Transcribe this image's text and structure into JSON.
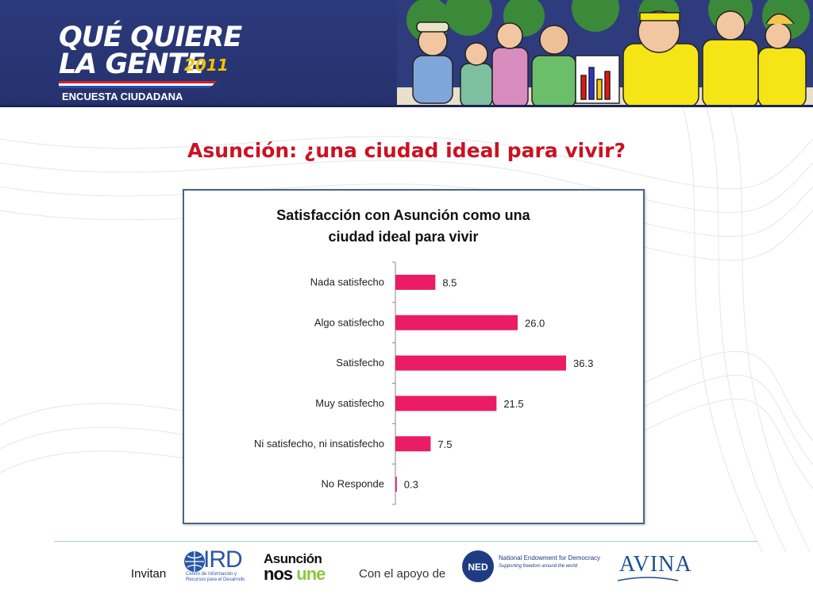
{
  "header": {
    "brand_line1": "QUÉ QUIERE",
    "brand_line2": "LA GENTE",
    "brand_year": "2011",
    "brand_subtitle": "ENCUESTA CIUDADANA",
    "colors": {
      "banner": "#2b3a7c",
      "year": "#f3c300"
    }
  },
  "page_title": "Asunción: ¿una ciudad ideal para vivir?",
  "chart_data": {
    "type": "bar",
    "orientation": "horizontal",
    "title_lines": [
      "Satisfacción con Asunción como una",
      "ciudad ideal para vivir"
    ],
    "categories": [
      "Nada satisfecho",
      "Algo satisfecho",
      "Satisfecho",
      "Muy satisfecho",
      "Ni satisfecho, ni insatisfecho",
      "No Responde"
    ],
    "values": [
      8.5,
      26.0,
      36.3,
      21.5,
      7.5,
      0.3
    ],
    "value_labels": [
      "8.5",
      "26.0",
      "36.3",
      "21.5",
      "7.5",
      "0.3"
    ],
    "xlim": [
      0,
      36.3
    ],
    "grid": false,
    "legend": "none",
    "bar_color": "#ea1c64"
  },
  "footer": {
    "invitan_label": "Invitan",
    "apoyo_label": "Con el apoyo de",
    "ird_logo_text": "IRD",
    "ird_logo_sub": "Centro de Información y Recursos para el Desarrollo",
    "asuncion_logo_line1": "Asunción",
    "asuncion_logo_line2_a": "nos",
    "asuncion_logo_line2_b": "une",
    "ned_logo_badge": "NED",
    "ned_logo_text": "National Endowment for Democracy",
    "ned_logo_sub": "Supporting freedom around the world",
    "avina_logo_text": "AVINA"
  }
}
